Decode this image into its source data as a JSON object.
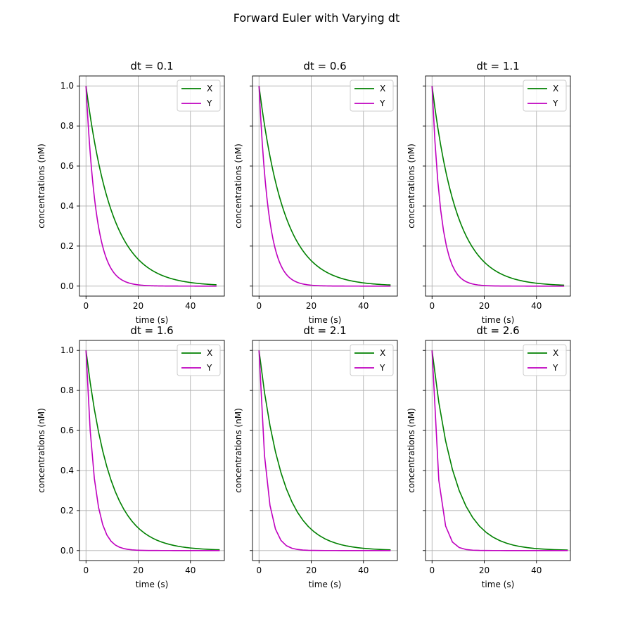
{
  "figure": {
    "title": "Forward Euler with Varying dt"
  },
  "style": {
    "x_color": "#008000",
    "y_color": "#bf00bf",
    "grid_color": "#b0b0b0",
    "axes_color": "#000000"
  },
  "chart_data": [
    {
      "type": "line",
      "title": "dt = 0.1",
      "xlabel": "time (s)",
      "ylabel": "concentrations (nM)",
      "dt": 0.1,
      "xlim": [
        -2.5,
        53.0
      ],
      "ylim": [
        -0.05,
        1.05
      ],
      "xticks": [
        0,
        20,
        40
      ],
      "xtick_labels": [
        "0",
        "20",
        "40"
      ],
      "yticks": [
        0.0,
        0.2,
        0.4,
        0.6,
        0.8,
        1.0
      ],
      "ytick_labels": [
        "0.0",
        "0.2",
        "0.4",
        "0.6",
        "0.8",
        "1.0"
      ],
      "show_yticklabels": true,
      "grid": true,
      "legend": "upper right",
      "x_max": 50,
      "decay_rates": {
        "X": 0.1,
        "Y": 0.25
      },
      "series": [
        {
          "name": "X",
          "color": "#008000",
          "rate": 0.1
        },
        {
          "name": "Y",
          "color": "#bf00bf",
          "rate": 0.25
        }
      ]
    },
    {
      "type": "line",
      "title": "dt = 0.6",
      "xlabel": "time (s)",
      "ylabel": "concentrations (nM)",
      "dt": 0.6,
      "xlim": [
        -2.5,
        53.0
      ],
      "ylim": [
        -0.05,
        1.05
      ],
      "xticks": [
        0,
        20,
        40
      ],
      "xtick_labels": [
        "0",
        "20",
        "40"
      ],
      "yticks": [
        0.0,
        0.2,
        0.4,
        0.6,
        0.8,
        1.0
      ],
      "ytick_labels": [
        "0.0",
        "0.2",
        "0.4",
        "0.6",
        "0.8",
        "1.0"
      ],
      "show_yticklabels": false,
      "grid": true,
      "legend": "upper right",
      "x_max": 50.4,
      "series": [
        {
          "name": "X",
          "color": "#008000",
          "rate": 0.1
        },
        {
          "name": "Y",
          "color": "#bf00bf",
          "rate": 0.25
        }
      ]
    },
    {
      "type": "line",
      "title": "dt = 1.1",
      "xlabel": "time (s)",
      "ylabel": "concentrations (nM)",
      "dt": 1.1,
      "xlim": [
        -2.5,
        53.0
      ],
      "ylim": [
        -0.05,
        1.05
      ],
      "xticks": [
        0,
        20,
        40
      ],
      "xtick_labels": [
        "0",
        "20",
        "40"
      ],
      "yticks": [
        0.0,
        0.2,
        0.4,
        0.6,
        0.8,
        1.0
      ],
      "ytick_labels": [
        "0.0",
        "0.2",
        "0.4",
        "0.6",
        "0.8",
        "1.0"
      ],
      "show_yticklabels": false,
      "grid": true,
      "legend": "upper right",
      "x_max": 50.6,
      "series": [
        {
          "name": "X",
          "color": "#008000",
          "rate": 0.1
        },
        {
          "name": "Y",
          "color": "#bf00bf",
          "rate": 0.25
        }
      ]
    },
    {
      "type": "line",
      "title": "dt = 1.6",
      "xlabel": "time (s)",
      "ylabel": "concentrations (nM)",
      "dt": 1.6,
      "xlim": [
        -2.5,
        53.0
      ],
      "ylim": [
        -0.05,
        1.05
      ],
      "xticks": [
        0,
        20,
        40
      ],
      "xtick_labels": [
        "0",
        "20",
        "40"
      ],
      "yticks": [
        0.0,
        0.2,
        0.4,
        0.6,
        0.8,
        1.0
      ],
      "ytick_labels": [
        "0.0",
        "0.2",
        "0.4",
        "0.6",
        "0.8",
        "1.0"
      ],
      "show_yticklabels": true,
      "grid": true,
      "legend": "upper right",
      "x_max": 51.2,
      "series": [
        {
          "name": "X",
          "color": "#008000",
          "rate": 0.1
        },
        {
          "name": "Y",
          "color": "#bf00bf",
          "rate": 0.25
        }
      ]
    },
    {
      "type": "line",
      "title": "dt = 2.1",
      "xlabel": "time (s)",
      "ylabel": "concentrations (nM)",
      "dt": 2.1,
      "xlim": [
        -2.5,
        53.0
      ],
      "ylim": [
        -0.05,
        1.05
      ],
      "xticks": [
        0,
        20,
        40
      ],
      "xtick_labels": [
        "0",
        "20",
        "40"
      ],
      "yticks": [
        0.0,
        0.2,
        0.4,
        0.6,
        0.8,
        1.0
      ],
      "ytick_labels": [
        "0.0",
        "0.2",
        "0.4",
        "0.6",
        "0.8",
        "1.0"
      ],
      "show_yticklabels": false,
      "grid": true,
      "legend": "upper right",
      "x_max": 50.4,
      "series": [
        {
          "name": "X",
          "color": "#008000",
          "rate": 0.1
        },
        {
          "name": "Y",
          "color": "#bf00bf",
          "rate": 0.25
        }
      ]
    },
    {
      "type": "line",
      "title": "dt = 2.6",
      "xlabel": "time (s)",
      "ylabel": "concentrations (nM)",
      "dt": 2.6,
      "xlim": [
        -2.5,
        53.0
      ],
      "ylim": [
        -0.05,
        1.05
      ],
      "xticks": [
        0,
        20,
        40
      ],
      "xtick_labels": [
        "0",
        "20",
        "40"
      ],
      "yticks": [
        0.0,
        0.2,
        0.4,
        0.6,
        0.8,
        1.0
      ],
      "ytick_labels": [
        "0.0",
        "0.2",
        "0.4",
        "0.6",
        "0.8",
        "1.0"
      ],
      "show_yticklabels": false,
      "grid": true,
      "legend": "upper right",
      "x_max": 52.0,
      "series": [
        {
          "name": "X",
          "color": "#008000",
          "rate": 0.1
        },
        {
          "name": "Y",
          "color": "#bf00bf",
          "rate": 0.25
        }
      ]
    }
  ]
}
